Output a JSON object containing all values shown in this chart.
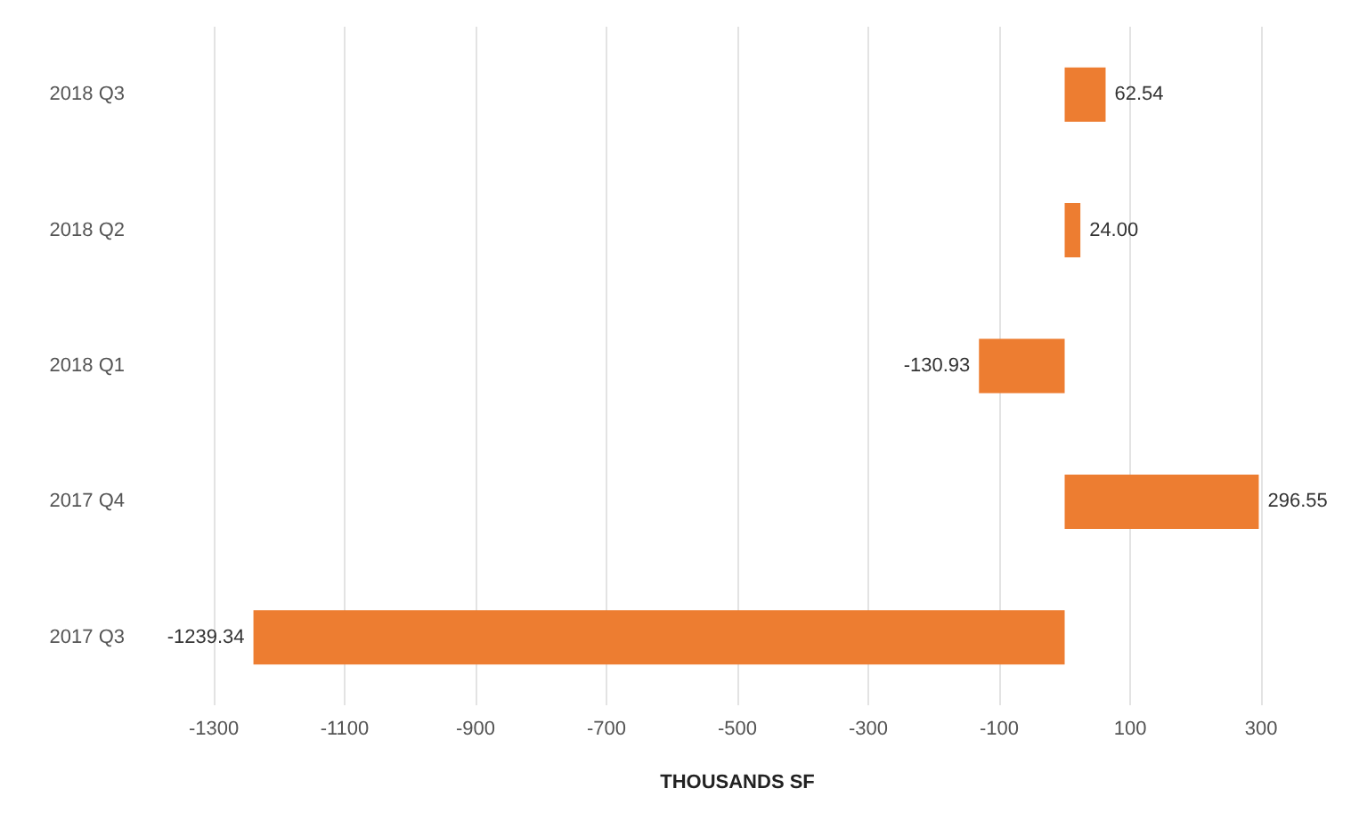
{
  "chart_data": {
    "type": "bar",
    "orientation": "horizontal",
    "xlabel": "THOUSANDS SF",
    "categories": [
      "2018 Q3",
      "2018 Q2",
      "2018 Q1",
      "2017 Q4",
      "2017 Q3"
    ],
    "values": [
      62.54,
      24.0,
      -130.93,
      296.55,
      -1239.34
    ],
    "value_labels": [
      "62.54",
      "24.00",
      "-130.93",
      "296.55",
      "-1239.34"
    ],
    "color": "#ed7d31",
    "xlim": [
      -1300,
      300
    ],
    "xticks": [
      -1300,
      -1100,
      -900,
      -700,
      -500,
      -300,
      -100,
      100,
      300
    ],
    "grid": "x"
  }
}
